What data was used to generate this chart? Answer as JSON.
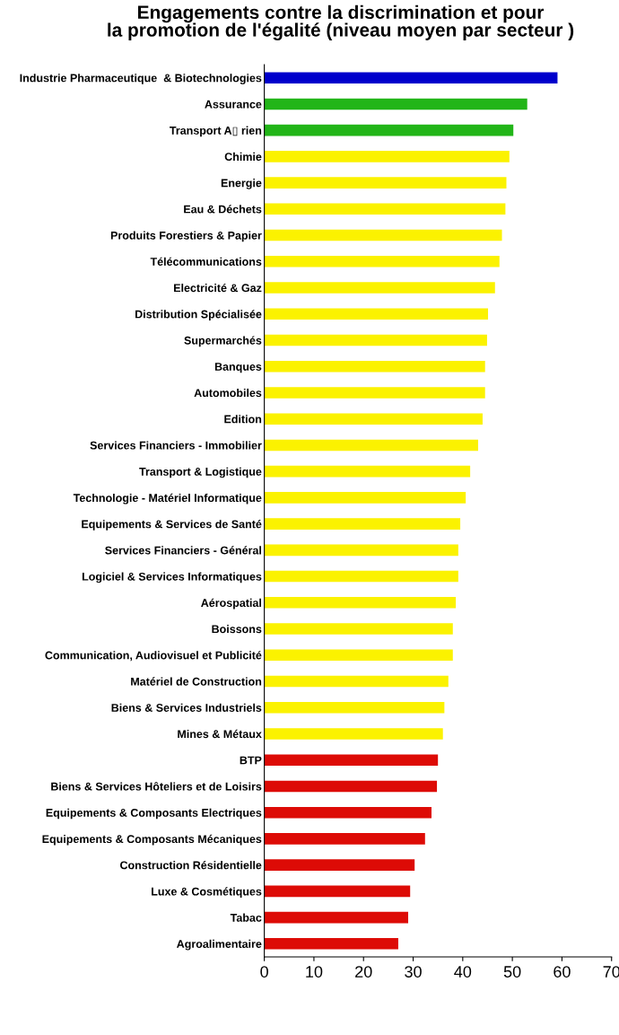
{
  "chart_data": {
    "type": "bar",
    "orientation": "horizontal",
    "title": "Engagements contre la discrimination et pour\nla promotion de l'égalité (niveau moyen par secteur )",
    "categories": [
      "Industrie Pharmaceutique  & Biotechnologies",
      "Assurance",
      "Transport A▯ rien",
      "Chimie",
      "Energie",
      "Eau & Déchets",
      "Produits Forestiers & Papier",
      "Télécommunications",
      "Electricité & Gaz",
      "Distribution Spécialisée",
      "Supermarchés",
      "Banques",
      "Automobiles",
      "Edition",
      "Services Financiers - Immobilier",
      "Transport & Logistique",
      "Technologie - Matériel Informatique",
      "Equipements & Services de Santé",
      "Services Financiers - Général",
      "Logiciel & Services Informatiques",
      "Aérospatial",
      "Boissons",
      "Communication, Audiovisuel et Publicité",
      "Matériel de Construction",
      "Biens & Services Industriels",
      "Mines & Métaux",
      "BTP",
      "Biens & Services Hôteliers et de Loisirs",
      "Equipements & Composants Electriques",
      "Equipements & Composants Mécaniques",
      "Construction Résidentielle",
      "Luxe & Cosmétiques",
      "Tabac",
      "Agroalimentaire"
    ],
    "values": [
      59.1,
      53.0,
      50.2,
      49.4,
      48.8,
      48.6,
      47.9,
      47.4,
      46.5,
      45.1,
      44.9,
      44.5,
      44.5,
      44.0,
      43.1,
      41.5,
      40.6,
      39.5,
      39.1,
      39.1,
      38.6,
      38.0,
      38.0,
      37.1,
      36.3,
      36.0,
      35.0,
      34.8,
      33.7,
      32.4,
      30.3,
      29.4,
      29.0,
      27.0
    ],
    "colors": [
      "#0000cc",
      "#22b518",
      "#22b518",
      "#fbf200",
      "#fbf200",
      "#fbf200",
      "#fbf200",
      "#fbf200",
      "#fbf200",
      "#fbf200",
      "#fbf200",
      "#fbf200",
      "#fbf200",
      "#fbf200",
      "#fbf200",
      "#fbf200",
      "#fbf200",
      "#fbf200",
      "#fbf200",
      "#fbf200",
      "#fbf200",
      "#fbf200",
      "#fbf200",
      "#fbf200",
      "#fbf200",
      "#fbf200",
      "#dd0b06",
      "#dd0b06",
      "#dd0b06",
      "#dd0b06",
      "#dd0b06",
      "#dd0b06",
      "#dd0b06",
      "#dd0b06"
    ],
    "xlim": [
      0,
      70
    ],
    "xticks": [
      0,
      10,
      20,
      30,
      40,
      50,
      60,
      70
    ],
    "grid": false,
    "legend": false
  }
}
